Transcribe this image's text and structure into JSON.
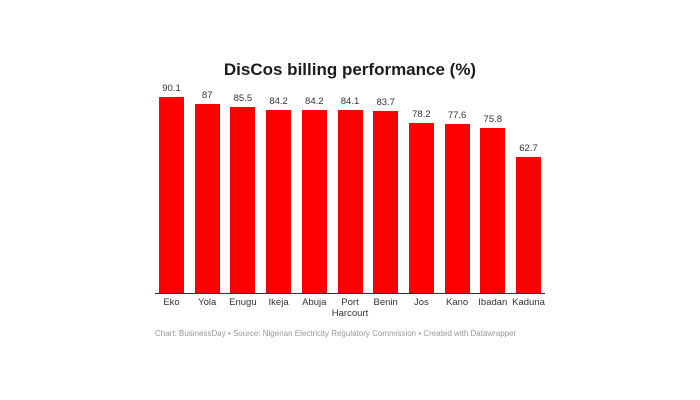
{
  "chart_data": {
    "type": "bar",
    "title": "DisCos billing performance (%)",
    "xlabel": "",
    "ylabel": "",
    "ylim": [
      0,
      98
    ],
    "grid": false,
    "legend": null,
    "categories": [
      "Eko",
      "Yola",
      "Enugu",
      "Ikeja",
      "Abuja",
      "Port Harcourt",
      "Benin",
      "Jos",
      "Kano",
      "Ibadan",
      "Kaduna"
    ],
    "category_lines": [
      [
        "Eko"
      ],
      [
        "Yola"
      ],
      [
        "Enugu"
      ],
      [
        "Ikeja"
      ],
      [
        "Abuja"
      ],
      [
        "Port",
        "Harcourt"
      ],
      [
        "Benin"
      ],
      [
        "Jos"
      ],
      [
        "Kano"
      ],
      [
        "Ibadan"
      ],
      [
        "Kaduna"
      ]
    ],
    "values": [
      90.1,
      87,
      85.5,
      84.2,
      84.2,
      84.1,
      83.7,
      78.2,
      77.6,
      75.8,
      62.7
    ],
    "value_labels": [
      "90.1",
      "87",
      "85.5",
      "84.2",
      "84.2",
      "84.1",
      "83.7",
      "78.2",
      "77.6",
      "75.8",
      "62.7"
    ],
    "bar_color": "#ff0000"
  },
  "footer": {
    "text": "Chart: BusinessDay • Source: Nigerian Electricity Regulatory Commission • Created with Datawrapper"
  }
}
